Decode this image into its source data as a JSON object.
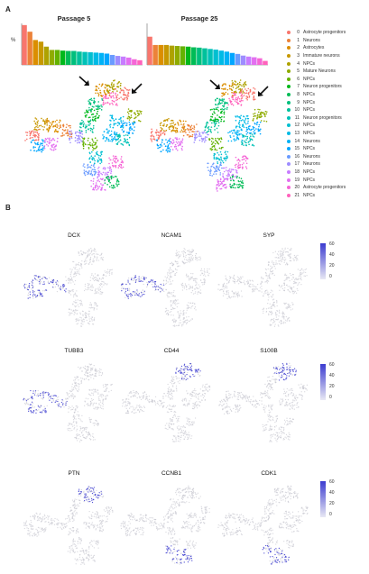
{
  "panel_a": {
    "letter": "A",
    "passage_titles": [
      "Passage 5",
      "Passage 25"
    ],
    "y_axis_label": "%",
    "legend": [
      {
        "id": "0",
        "label": "Astrocyte progenitors",
        "color": "#f8766d"
      },
      {
        "id": "1",
        "label": "Neurons",
        "color": "#ec8239"
      },
      {
        "id": "2",
        "label": "Astrocytes",
        "color": "#db8e00"
      },
      {
        "id": "3",
        "label": "Immature neurons",
        "color": "#c79800"
      },
      {
        "id": "4",
        "label": "NPCs",
        "color": "#aea200"
      },
      {
        "id": "5",
        "label": "Mature Neurons",
        "color": "#8fab00"
      },
      {
        "id": "6",
        "label": "NPCs",
        "color": "#64b200"
      },
      {
        "id": "7",
        "label": "Neuron progenitors",
        "color": "#00b81b"
      },
      {
        "id": "8",
        "label": "NPCs",
        "color": "#00bc56"
      },
      {
        "id": "9",
        "label": "NPCs",
        "color": "#00bf7d"
      },
      {
        "id": "10",
        "label": "NPCs",
        "color": "#00c19c"
      },
      {
        "id": "11",
        "label": "Neuron progenitors",
        "color": "#00c1b7"
      },
      {
        "id": "12",
        "label": "NPCs",
        "color": "#00bfd0"
      },
      {
        "id": "13",
        "label": "NPCs",
        "color": "#00bae5"
      },
      {
        "id": "14",
        "label": "Neurons",
        "color": "#00b2f6"
      },
      {
        "id": "15",
        "label": "NPCs",
        "color": "#00a6ff"
      },
      {
        "id": "16",
        "label": "Neurons",
        "color": "#6a9bff"
      },
      {
        "id": "17",
        "label": "Neurons",
        "color": "#9e8cff"
      },
      {
        "id": "18",
        "label": "NPCs",
        "color": "#c77cff"
      },
      {
        "id": "19",
        "label": "NPCs",
        "color": "#e36ff0"
      },
      {
        "id": "20",
        "label": "Astrocyte progenitors",
        "color": "#f566d6"
      },
      {
        "id": "21",
        "label": "NPCs",
        "color": "#ff62bc"
      }
    ]
  },
  "chart_data": [
    {
      "type": "bar",
      "title": "Passage 5",
      "ylabel": "%",
      "categories": [
        "0",
        "1",
        "2",
        "3",
        "4",
        "5",
        "6",
        "7",
        "8",
        "9",
        "10",
        "11",
        "12",
        "13",
        "14",
        "15",
        "16",
        "17",
        "18",
        "19",
        "20",
        "21"
      ],
      "values": [
        12,
        10,
        7.5,
        7,
        5.5,
        4.5,
        4.5,
        4.3,
        4.2,
        4.2,
        4,
        3.9,
        3.8,
        3.7,
        3.6,
        3.4,
        3,
        2.7,
        2.5,
        2.2,
        1.7,
        1.4
      ],
      "ylim": [
        0,
        12.5
      ]
    },
    {
      "type": "bar",
      "title": "Passage 25",
      "ylabel": "%",
      "categories": [
        "0",
        "1",
        "2",
        "3",
        "4",
        "5",
        "6",
        "7",
        "8",
        "9",
        "10",
        "11",
        "12",
        "13",
        "14",
        "15",
        "16",
        "17",
        "18",
        "19",
        "20",
        "21"
      ],
      "values": [
        8.5,
        6,
        6,
        6,
        5.8,
        5.7,
        5.6,
        5.5,
        5.3,
        5.2,
        5,
        4.8,
        4.6,
        4.3,
        4,
        3.6,
        3.3,
        2.8,
        2.5,
        2.3,
        2,
        1.2
      ],
      "ylim": [
        0,
        12.5
      ]
    }
  ],
  "panel_b": {
    "letter": "B",
    "genes": [
      {
        "name": "DCX",
        "region": "left"
      },
      {
        "name": "NCAM1",
        "region": "left"
      },
      {
        "name": "SYP",
        "region": "none"
      },
      {
        "name": "TUBB3",
        "region": "left"
      },
      {
        "name": "CD44",
        "region": "top"
      },
      {
        "name": "S100B",
        "region": "top"
      },
      {
        "name": "PTN",
        "region": "top"
      },
      {
        "name": "CCNB1",
        "region": "bottom"
      },
      {
        "name": "CDK1",
        "region": "bottom"
      }
    ],
    "colorbars": [
      {
        "ticks": [
          "60",
          "40",
          "20",
          "0"
        ]
      },
      {
        "ticks": [
          "60",
          "40",
          "20",
          "0"
        ]
      },
      {
        "ticks": [
          "60",
          "40",
          "20",
          "0"
        ]
      }
    ],
    "expression_color_high": "#3b3bd0",
    "expression_color_low": "#e8e8f4"
  }
}
